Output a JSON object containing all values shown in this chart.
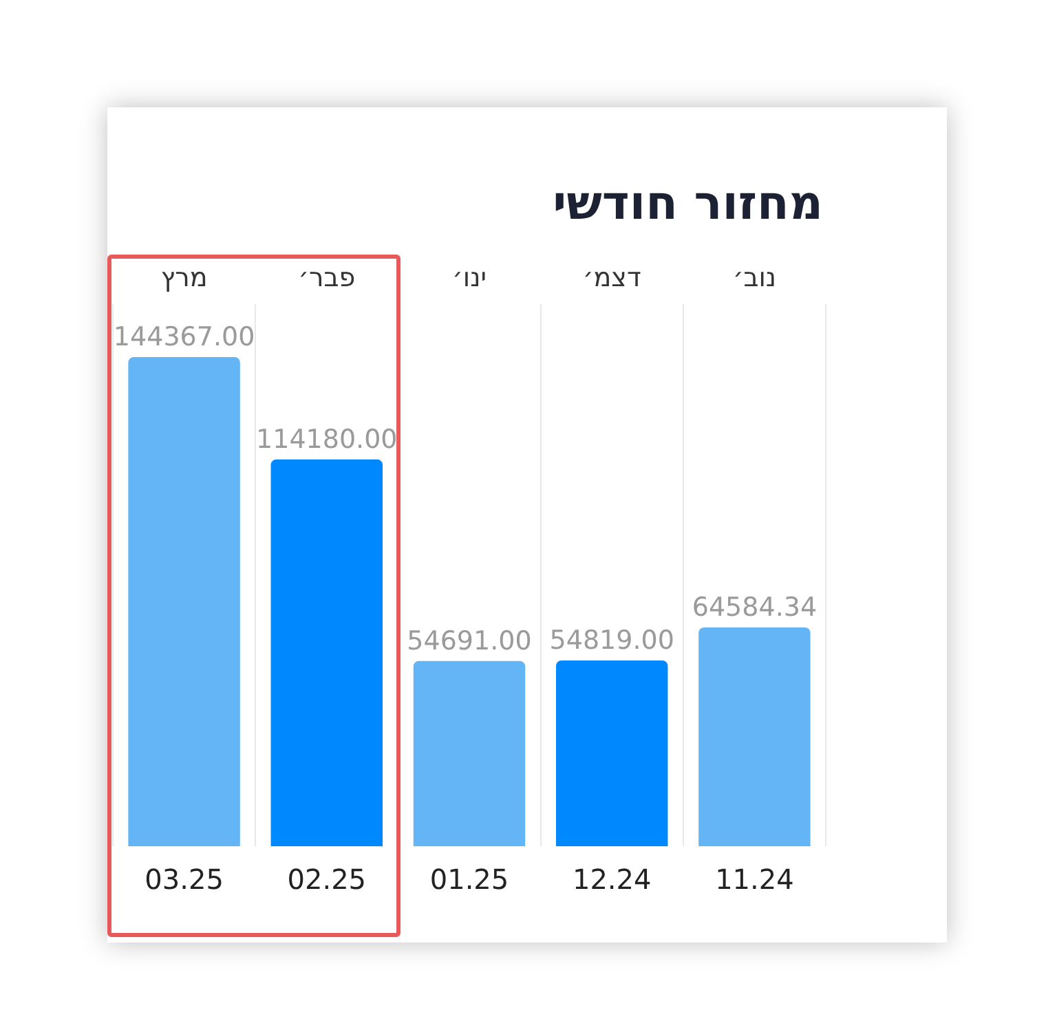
{
  "chart_data": {
    "type": "bar",
    "title": "מחזור חודשי",
    "categories": [
      "03.25",
      "02.25",
      "01.25",
      "12.24",
      "11.24"
    ],
    "values": [
      144367,
      114180,
      54691,
      54819,
      64584.34
    ],
    "value_labels": [
      "144367.00",
      "114180.00",
      "54691.00",
      "54819.00",
      "64584.34"
    ],
    "colors": [
      "#64b5f6",
      "#0088ff",
      "#64b5f6",
      "#0088ff",
      "#64b5f6"
    ],
    "annotations": [
      "מרץ",
      "פבר׳",
      "ינו׳",
      "דצמ׳",
      "נוב׳"
    ],
    "grid": "x",
    "legend": false
  }
}
